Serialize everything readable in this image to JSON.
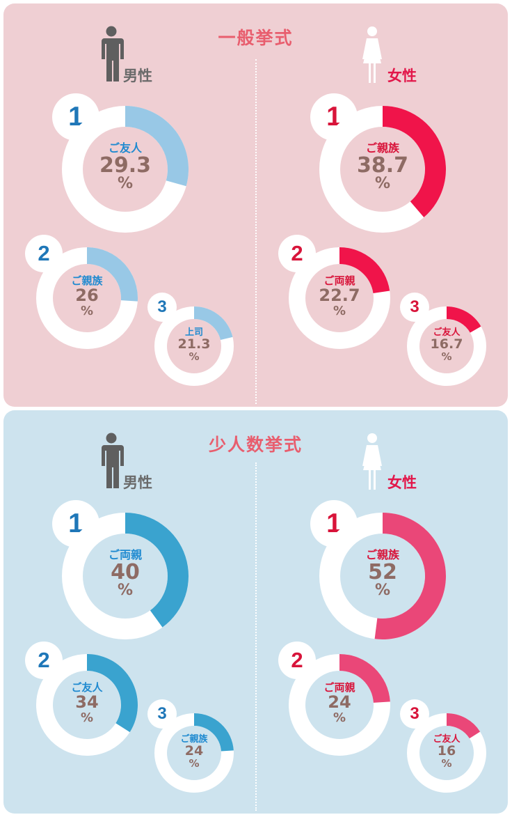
{
  "colors": {
    "panel_general_bg": "#efcfd3",
    "panel_small_bg": "#cde3ee",
    "title": "#e85e6e",
    "male_label": "#6a6a6a",
    "female_label": "#e2174a",
    "male_rank_num": "#1f77b8",
    "female_rank_num": "#d8143a",
    "male_center_label": "#1f8ad0",
    "female_center_label": "#d8143a",
    "value_text": "#8e6b64",
    "ring_track": "#ffffff",
    "general_male_arc": "#98c8e6",
    "general_female_arc": "#f0144a",
    "small_male_arc": "#3aa3cf",
    "small_female_arc": "#ea4778"
  },
  "chart_data": [
    {
      "type": "pie",
      "title": "一般挙式",
      "gender": "男性",
      "unit": "%",
      "ranks": [
        {
          "rank": "1",
          "label": "ご友人",
          "value": 29.3,
          "value_text": "29.3"
        },
        {
          "rank": "2",
          "label": "ご親族",
          "value": 26,
          "value_text": "26"
        },
        {
          "rank": "3",
          "label": "上司",
          "value": 21.3,
          "value_text": "21.3"
        }
      ]
    },
    {
      "type": "pie",
      "title": "一般挙式",
      "gender": "女性",
      "unit": "%",
      "ranks": [
        {
          "rank": "1",
          "label": "ご親族",
          "value": 38.7,
          "value_text": "38.7"
        },
        {
          "rank": "2",
          "label": "ご両親",
          "value": 22.7,
          "value_text": "22.7"
        },
        {
          "rank": "3",
          "label": "ご友人",
          "value": 16.7,
          "value_text": "16.7"
        }
      ]
    },
    {
      "type": "pie",
      "title": "少人数挙式",
      "gender": "男性",
      "unit": "%",
      "ranks": [
        {
          "rank": "1",
          "label": "ご両親",
          "value": 40,
          "value_text": "40"
        },
        {
          "rank": "2",
          "label": "ご友人",
          "value": 34,
          "value_text": "34"
        },
        {
          "rank": "3",
          "label": "ご親族",
          "value": 24,
          "value_text": "24"
        }
      ]
    },
    {
      "type": "pie",
      "title": "少人数挙式",
      "gender": "女性",
      "unit": "%",
      "ranks": [
        {
          "rank": "1",
          "label": "ご親族",
          "value": 52,
          "value_text": "52"
        },
        {
          "rank": "2",
          "label": "ご両親",
          "value": 24,
          "value_text": "24"
        },
        {
          "rank": "3",
          "label": "ご友人",
          "value": 16,
          "value_text": "16"
        }
      ]
    }
  ],
  "panels": [
    {
      "title": "一般挙式",
      "male_label": "男性",
      "female_label": "女性"
    },
    {
      "title": "少人数挙式",
      "male_label": "男性",
      "female_label": "女性"
    }
  ]
}
